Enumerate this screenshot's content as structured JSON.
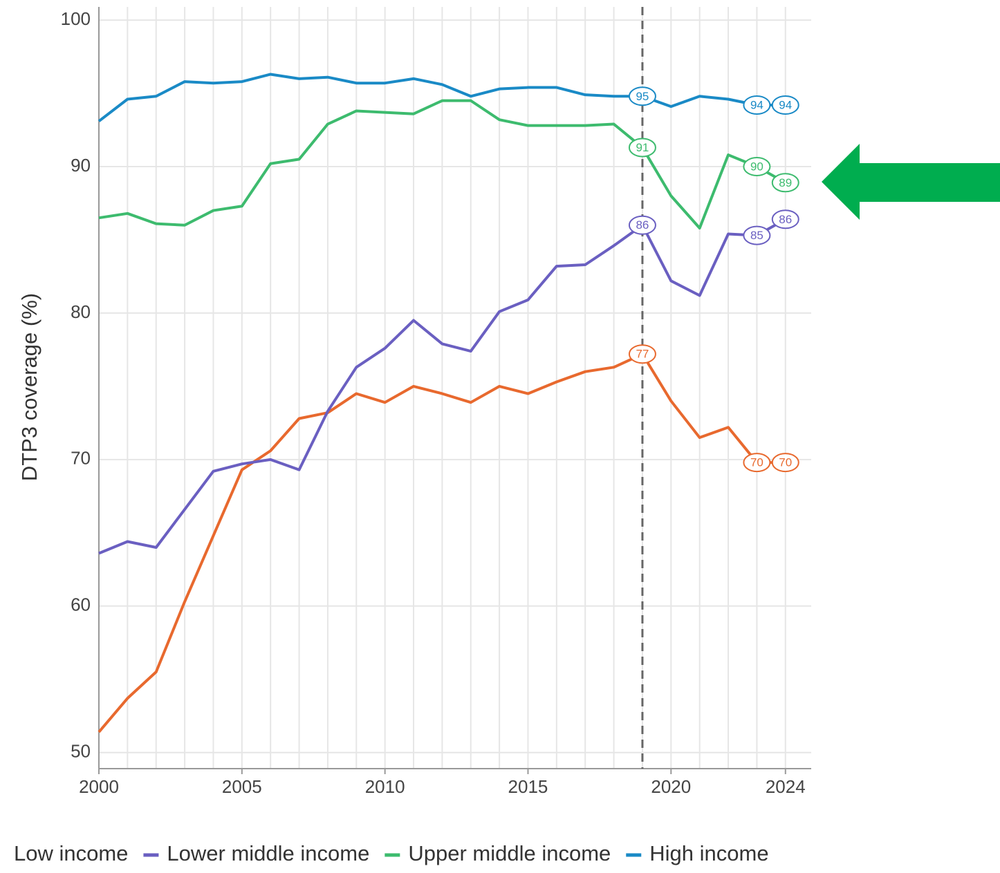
{
  "chart_data": {
    "type": "line",
    "y_label": "DTP3 coverage (%)",
    "x": [
      2000,
      2001,
      2002,
      2003,
      2004,
      2005,
      2006,
      2007,
      2008,
      2009,
      2010,
      2011,
      2012,
      2013,
      2014,
      2015,
      2016,
      2017,
      2018,
      2019,
      2020,
      2021,
      2022,
      2023,
      2024
    ],
    "series": [
      {
        "name": "Low income",
        "color": "#e8692e",
        "values": [
          51.4,
          53.7,
          55.5,
          60.3,
          64.8,
          69.3,
          70.6,
          72.8,
          73.2,
          74.5,
          73.9,
          75.0,
          74.5,
          73.9,
          75.0,
          74.5,
          75.3,
          76.0,
          76.3,
          77.2,
          74.0,
          71.5,
          72.2,
          69.8,
          69.8
        ],
        "value_labels": [
          null,
          null,
          null,
          null,
          null,
          null,
          null,
          null,
          null,
          null,
          null,
          null,
          null,
          null,
          null,
          null,
          null,
          null,
          null,
          "77",
          null,
          null,
          null,
          "70",
          "70"
        ]
      },
      {
        "name": "Lower middle income",
        "color": "#6a5fc1",
        "values": [
          63.6,
          64.4,
          64.0,
          66.6,
          69.2,
          69.7,
          70.0,
          69.3,
          73.3,
          76.3,
          77.6,
          79.5,
          77.9,
          77.4,
          80.1,
          80.9,
          83.2,
          83.3,
          84.6,
          86.0,
          82.2,
          81.2,
          85.4,
          85.3,
          86.4
        ],
        "value_labels": [
          null,
          null,
          null,
          null,
          null,
          null,
          null,
          null,
          null,
          null,
          null,
          null,
          null,
          null,
          null,
          null,
          null,
          null,
          null,
          "86",
          null,
          null,
          null,
          "85",
          "86"
        ]
      },
      {
        "name": "Upper middle income",
        "color": "#3dbb6e",
        "values": [
          86.5,
          86.8,
          86.1,
          86.0,
          87.0,
          87.3,
          90.2,
          90.5,
          92.9,
          93.8,
          93.7,
          93.6,
          94.5,
          94.5,
          93.2,
          92.8,
          92.8,
          92.8,
          92.9,
          91.3,
          88.0,
          85.8,
          90.8,
          90.0,
          88.9
        ],
        "value_labels": [
          null,
          null,
          null,
          null,
          null,
          null,
          null,
          null,
          null,
          null,
          null,
          null,
          null,
          null,
          null,
          null,
          null,
          null,
          null,
          "91",
          null,
          null,
          null,
          "90",
          "89"
        ]
      },
      {
        "name": "High income",
        "color": "#1a8ac6",
        "values": [
          93.1,
          94.6,
          94.8,
          95.8,
          95.7,
          95.8,
          96.3,
          96.0,
          96.1,
          95.7,
          95.7,
          96.0,
          95.6,
          94.8,
          95.3,
          95.4,
          95.4,
          94.9,
          94.8,
          94.8,
          94.1,
          94.8,
          94.6,
          94.2,
          94.2
        ],
        "value_labels": [
          null,
          null,
          null,
          null,
          null,
          null,
          null,
          null,
          null,
          null,
          null,
          null,
          null,
          null,
          null,
          null,
          null,
          null,
          null,
          "95",
          null,
          null,
          null,
          "94",
          "94"
        ]
      }
    ],
    "xlim": [
      2000,
      2024.9
    ],
    "ylim": [
      48.9,
      100.9
    ],
    "xticks": [
      2000,
      2005,
      2010,
      2015,
      2020,
      2024
    ],
    "yticks": [
      50,
      60,
      70,
      80,
      90,
      100
    ],
    "reference_x": 2019,
    "grid": true,
    "legend": "bottom"
  }
}
